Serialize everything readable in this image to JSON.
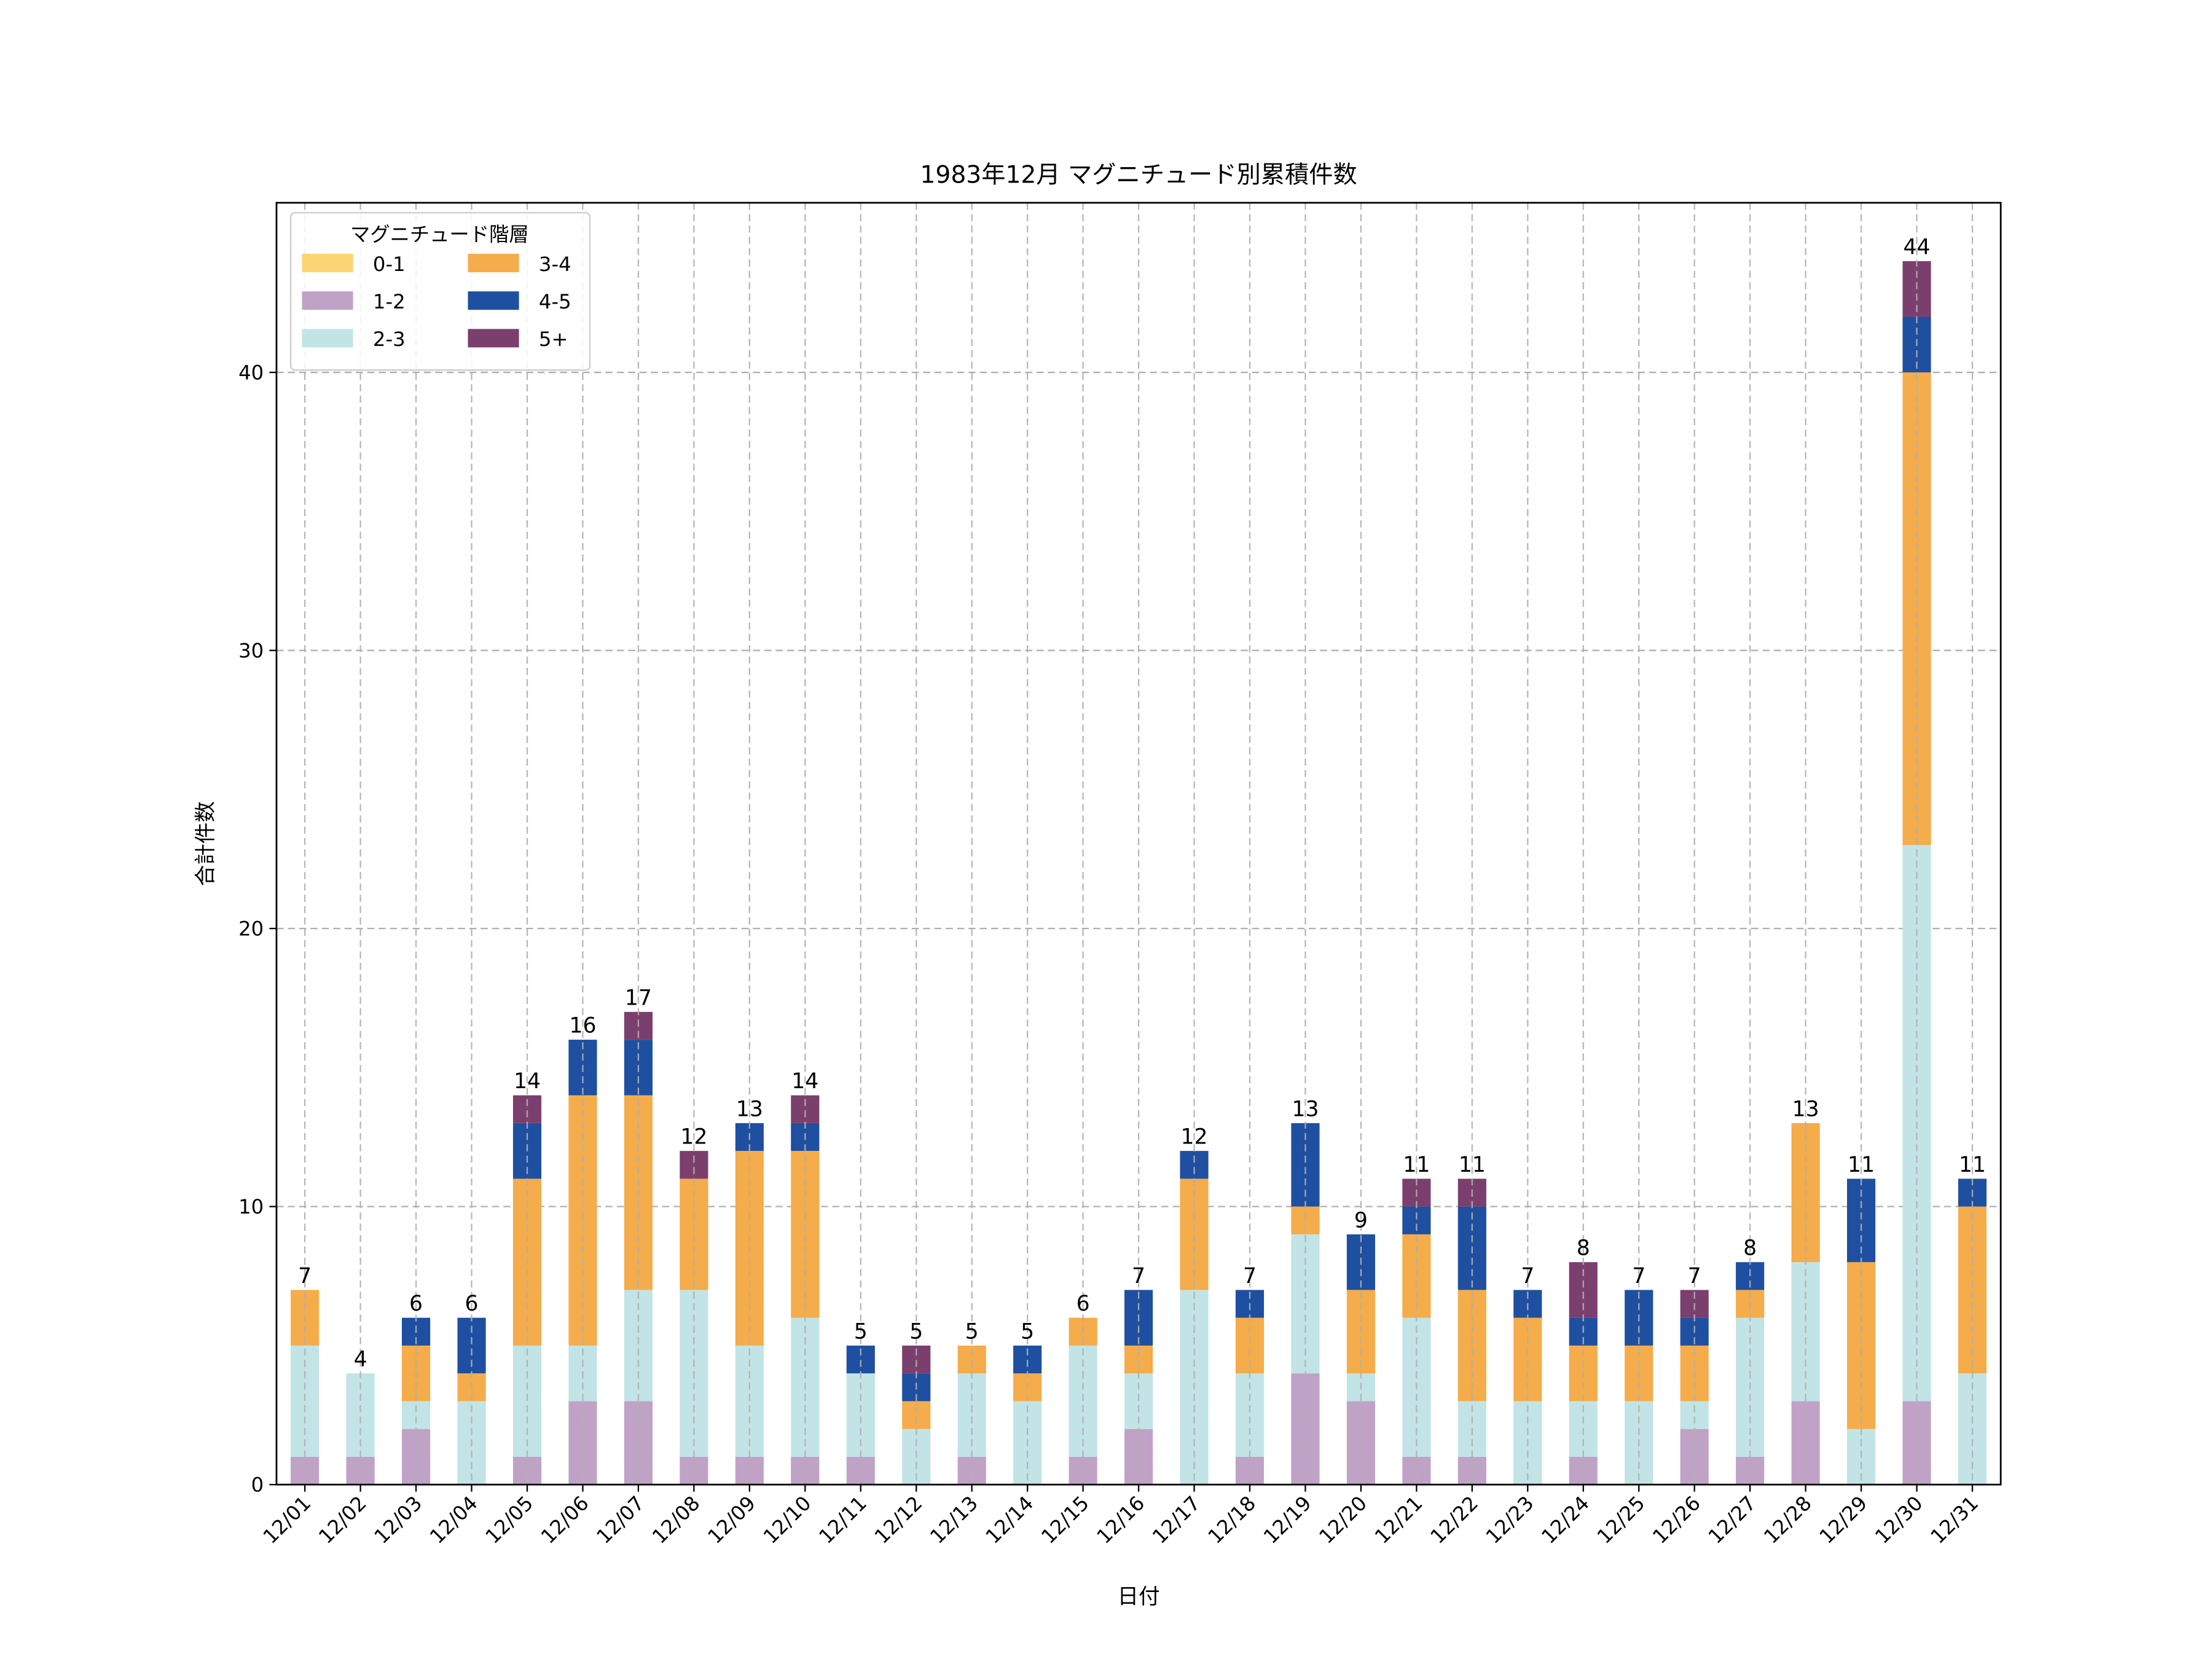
{
  "chart_data": {
    "type": "bar",
    "stacked": true,
    "title": "1983年12月 マグニチュード別累積件数",
    "xlabel": "日付",
    "ylabel": "合計件数",
    "ylim": [
      0,
      46.1
    ],
    "yticks": [
      0,
      10,
      20,
      30,
      40
    ],
    "grid": true,
    "legend": {
      "title": "マグニチュード階層",
      "placement": "top-left",
      "columns": 2
    },
    "categories": [
      "12/01",
      "12/02",
      "12/03",
      "12/04",
      "12/05",
      "12/06",
      "12/07",
      "12/08",
      "12/09",
      "12/10",
      "12/11",
      "12/12",
      "12/13",
      "12/14",
      "12/15",
      "12/16",
      "12/17",
      "12/18",
      "12/19",
      "12/20",
      "12/21",
      "12/22",
      "12/23",
      "12/24",
      "12/25",
      "12/26",
      "12/27",
      "12/28",
      "12/29",
      "12/30",
      "12/31"
    ],
    "series": [
      {
        "name": "0-1",
        "color": "#fdd474",
        "values": [
          0,
          0,
          0,
          0,
          0,
          0,
          0,
          0,
          0,
          0,
          0,
          0,
          0,
          0,
          0,
          0,
          0,
          0,
          0,
          0,
          0,
          0,
          0,
          0,
          0,
          0,
          0,
          0,
          0,
          0,
          0
        ]
      },
      {
        "name": "1-2",
        "color": "#c0a2c7",
        "values": [
          1,
          1,
          2,
          0,
          1,
          3,
          3,
          1,
          1,
          1,
          1,
          0,
          1,
          0,
          1,
          2,
          0,
          1,
          4,
          3,
          1,
          1,
          0,
          1,
          0,
          2,
          1,
          3,
          0,
          3,
          0
        ]
      },
      {
        "name": "2-3",
        "color": "#c2e4e6",
        "values": [
          4,
          3,
          1,
          3,
          4,
          2,
          4,
          6,
          4,
          5,
          3,
          2,
          3,
          3,
          4,
          2,
          7,
          3,
          5,
          1,
          5,
          2,
          3,
          2,
          3,
          1,
          5,
          5,
          2,
          20,
          4
        ]
      },
      {
        "name": "3-4",
        "color": "#f5ac4a",
        "values": [
          2,
          0,
          2,
          1,
          6,
          9,
          7,
          4,
          7,
          6,
          0,
          1,
          1,
          1,
          1,
          1,
          4,
          2,
          1,
          3,
          3,
          4,
          3,
          2,
          2,
          2,
          1,
          5,
          6,
          17,
          6
        ]
      },
      {
        "name": "4-5",
        "color": "#1f4fa0",
        "values": [
          0,
          0,
          1,
          2,
          2,
          2,
          2,
          0,
          1,
          1,
          1,
          1,
          0,
          1,
          0,
          2,
          1,
          1,
          3,
          2,
          1,
          3,
          1,
          1,
          2,
          1,
          1,
          0,
          3,
          2,
          1
        ]
      },
      {
        "name": "5+",
        "color": "#7b3f6e",
        "values": [
          0,
          0,
          0,
          0,
          1,
          0,
          1,
          1,
          0,
          1,
          0,
          1,
          0,
          0,
          0,
          0,
          0,
          0,
          0,
          0,
          1,
          1,
          0,
          2,
          0,
          1,
          0,
          0,
          0,
          2,
          0
        ]
      }
    ],
    "totals": [
      7,
      4,
      6,
      6,
      14,
      16,
      17,
      12,
      13,
      14,
      5,
      5,
      5,
      5,
      6,
      7,
      12,
      7,
      13,
      9,
      11,
      11,
      7,
      8,
      7,
      7,
      8,
      13,
      11,
      44,
      11
    ]
  }
}
